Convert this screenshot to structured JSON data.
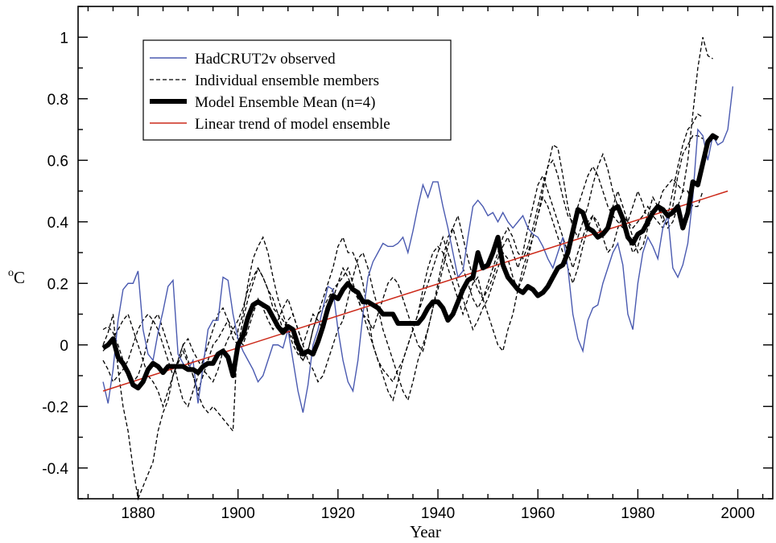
{
  "chart_data": {
    "type": "line",
    "title": "",
    "xlabel": "Year",
    "ylabel_main": "C",
    "ylabel_superscript": "o",
    "xlim": [
      1868,
      2007
    ],
    "ylim": [
      -0.5,
      1.1
    ],
    "xticks": [
      1880,
      1900,
      1920,
      1940,
      1960,
      1980,
      2000
    ],
    "yticks": [
      -0.4,
      -0.2,
      0,
      0.2,
      0.4,
      0.6,
      0.8,
      1
    ],
    "ytick_labels": [
      "-0.4",
      "-0.2",
      "0",
      "0.2",
      "0.4",
      "0.6",
      "0.8",
      "1"
    ],
    "grid": false,
    "legend_position": "top-left",
    "colors": {
      "observed": "#4a5ab0",
      "members": "#000000",
      "mean": "#000000",
      "trend": "#cc2a1a"
    },
    "series": [
      {
        "name": "HadCRUT2v observed",
        "style": "thin-blue",
        "x_start": 1873,
        "values": [
          -0.12,
          -0.19,
          -0.08,
          0.08,
          0.18,
          0.2,
          0.2,
          0.24,
          0.05,
          -0.03,
          -0.05,
          0.04,
          0.11,
          0.19,
          0.21,
          -0.03,
          -0.06,
          -0.08,
          -0.05,
          -0.19,
          -0.07,
          0.05,
          0.08,
          0.08,
          0.22,
          0.21,
          0.1,
          0.02,
          -0.02,
          -0.05,
          -0.08,
          -0.12,
          -0.1,
          -0.05,
          0.0,
          0.0,
          -0.01,
          0.05,
          -0.05,
          -0.15,
          -0.22,
          -0.13,
          0.0,
          0.05,
          0.12,
          0.19,
          0.18,
          0.05,
          -0.05,
          -0.12,
          -0.15,
          -0.05,
          0.1,
          0.22,
          0.27,
          0.3,
          0.33,
          0.32,
          0.32,
          0.33,
          0.35,
          0.3,
          0.37,
          0.45,
          0.52,
          0.48,
          0.53,
          0.53,
          0.45,
          0.38,
          0.3,
          0.22,
          0.24,
          0.35,
          0.45,
          0.47,
          0.45,
          0.42,
          0.43,
          0.4,
          0.43,
          0.4,
          0.38,
          0.4,
          0.42,
          0.38,
          0.36,
          0.35,
          0.32,
          0.28,
          0.25,
          0.3,
          0.35,
          0.25,
          0.1,
          0.02,
          -0.02,
          0.08,
          0.12,
          0.13,
          0.2,
          0.25,
          0.3,
          0.33,
          0.26,
          0.1,
          0.05,
          0.2,
          0.3,
          0.35,
          0.32,
          0.28,
          0.38,
          0.42,
          0.25,
          0.22,
          0.26,
          0.33,
          0.48,
          0.7,
          0.68,
          0.6,
          0.68,
          0.65,
          0.66,
          0.7,
          0.84
        ]
      },
      {
        "name": "Individual ensemble members",
        "style": "dashed",
        "members": [
          {
            "x_start": 1873,
            "values": [
              0.0,
              0.04,
              0.1,
              -0.08,
              -0.2,
              -0.28,
              -0.4,
              -0.5,
              -0.46,
              -0.42,
              -0.38,
              -0.28,
              -0.22,
              -0.18,
              -0.1,
              -0.06,
              -0.02,
              -0.06,
              -0.1,
              -0.16,
              -0.2,
              -0.22,
              -0.2,
              -0.22,
              -0.24,
              -0.26,
              -0.28,
              0.05,
              0.1,
              0.2,
              0.28,
              0.32,
              0.35,
              0.3,
              0.22,
              0.15,
              0.1,
              0.05,
              0.0,
              -0.03,
              -0.05,
              -0.02,
              0.05,
              0.1,
              0.15,
              0.2,
              0.25,
              0.32,
              0.35,
              0.3,
              0.3,
              0.26,
              0.2,
              0.1,
              0.0,
              -0.05,
              -0.1,
              -0.15,
              -0.18,
              -0.12,
              -0.05,
              0.0,
              0.05,
              0.1,
              0.18,
              0.25,
              0.3,
              0.32,
              0.3,
              0.25,
              0.2,
              0.15,
              0.1,
              0.15,
              0.2,
              0.22,
              0.15,
              0.1,
              0.05,
              0.0,
              -0.02,
              0.05,
              0.1,
              0.18,
              0.25,
              0.3,
              0.35,
              0.42,
              0.5,
              0.58,
              0.65,
              0.64,
              0.55,
              0.45,
              0.38,
              0.35,
              0.4,
              0.45,
              0.52,
              0.58,
              0.62,
              0.57,
              0.5,
              0.45,
              0.42,
              0.4,
              0.45,
              0.5,
              0.46,
              0.4,
              0.42,
              0.45,
              0.5,
              0.52,
              0.54,
              0.52,
              0.5,
              0.6,
              0.75,
              0.9,
              1.0,
              0.94,
              0.93
            ]
          },
          {
            "x_start": 1873,
            "values": [
              0.05,
              0.06,
              0.04,
              0.0,
              -0.05,
              -0.1,
              -0.12,
              -0.1,
              -0.05,
              0.02,
              0.08,
              0.1,
              0.05,
              0.0,
              -0.05,
              -0.12,
              -0.18,
              -0.2,
              -0.15,
              -0.1,
              -0.05,
              0.0,
              0.05,
              0.1,
              0.12,
              0.08,
              0.02,
              0.0,
              0.08,
              0.15,
              0.2,
              0.25,
              0.22,
              0.18,
              0.15,
              0.1,
              0.05,
              0.08,
              0.1,
              0.05,
              0.0,
              -0.05,
              -0.08,
              -0.12,
              -0.1,
              -0.05,
              0.0,
              0.05,
              0.08,
              0.15,
              0.22,
              0.28,
              0.3,
              0.25,
              0.18,
              0.12,
              0.05,
              0.0,
              -0.05,
              -0.1,
              -0.15,
              -0.18,
              -0.12,
              -0.05,
              0.0,
              0.05,
              0.12,
              0.2,
              0.28,
              0.35,
              0.38,
              0.32,
              0.25,
              0.2,
              0.15,
              0.12,
              0.15,
              0.2,
              0.25,
              0.3,
              0.35,
              0.38,
              0.35,
              0.3,
              0.28,
              0.32,
              0.38,
              0.45,
              0.52,
              0.58,
              0.6,
              0.55,
              0.48,
              0.42,
              0.4,
              0.45,
              0.5,
              0.55,
              0.58,
              0.55,
              0.5,
              0.45,
              0.42,
              0.4,
              0.38,
              0.35,
              0.3,
              0.32,
              0.38,
              0.42,
              0.48,
              0.45,
              0.4,
              0.42,
              0.5,
              0.58,
              0.65,
              0.7,
              0.72,
              0.75,
              0.74
            ]
          },
          {
            "x_start": 1873,
            "values": [
              -0.05,
              -0.08,
              -0.12,
              -0.1,
              -0.08,
              -0.05,
              0.0,
              0.05,
              0.08,
              0.1,
              0.08,
              0.05,
              0.0,
              -0.05,
              -0.1,
              -0.05,
              0.0,
              0.02,
              -0.02,
              -0.05,
              -0.08,
              -0.1,
              -0.12,
              -0.08,
              -0.02,
              0.02,
              0.05,
              0.08,
              0.12,
              0.18,
              0.22,
              0.25,
              0.22,
              0.18,
              0.12,
              0.1,
              0.08,
              0.05,
              0.02,
              -0.02,
              -0.05,
              -0.02,
              0.05,
              0.1,
              0.12,
              0.15,
              0.18,
              0.2,
              0.22,
              0.25,
              0.2,
              0.15,
              0.1,
              0.08,
              0.05,
              0.1,
              0.15,
              0.2,
              0.22,
              0.2,
              0.15,
              0.1,
              0.05,
              0.0,
              -0.02,
              0.05,
              0.12,
              0.18,
              0.25,
              0.32,
              0.38,
              0.42,
              0.35,
              0.28,
              0.22,
              0.18,
              0.15,
              0.18,
              0.22,
              0.28,
              0.32,
              0.35,
              0.3,
              0.25,
              0.3,
              0.38,
              0.45,
              0.52,
              0.55,
              0.5,
              0.45,
              0.4,
              0.35,
              0.3,
              0.25,
              0.3,
              0.35,
              0.4,
              0.42,
              0.38,
              0.35,
              0.4,
              0.45,
              0.5,
              0.45,
              0.4,
              0.38,
              0.4,
              0.42,
              0.45,
              0.42,
              0.4,
              0.38,
              0.4,
              0.45,
              0.55,
              0.62,
              0.65,
              0.68,
              0.68,
              0.67
            ]
          },
          {
            "x_start": 1873,
            "values": [
              -0.02,
              0.0,
              0.02,
              0.05,
              0.08,
              0.1,
              0.05,
              0.0,
              -0.05,
              -0.1,
              -0.12,
              -0.15,
              -0.2,
              -0.15,
              -0.1,
              -0.05,
              0.0,
              -0.05,
              -0.1,
              -0.15,
              -0.1,
              -0.05,
              0.0,
              0.02,
              0.05,
              0.08,
              0.05,
              0.02,
              0.0,
              0.05,
              0.1,
              0.15,
              0.12,
              0.08,
              0.05,
              0.08,
              0.12,
              0.15,
              0.1,
              0.05,
              0.0,
              0.05,
              0.1,
              0.08,
              0.05,
              0.1,
              0.15,
              0.2,
              0.25,
              0.22,
              0.18,
              0.15,
              0.1,
              0.05,
              0.0,
              -0.05,
              -0.08,
              -0.1,
              -0.12,
              -0.08,
              -0.05,
              0.0,
              0.05,
              0.1,
              0.15,
              0.2,
              0.25,
              0.3,
              0.35,
              0.3,
              0.25,
              0.2,
              0.15,
              0.1,
              0.05,
              0.08,
              0.12,
              0.15,
              0.2,
              0.25,
              0.3,
              0.28,
              0.22,
              0.18,
              0.22,
              0.28,
              0.35,
              0.42,
              0.48,
              0.45,
              0.4,
              0.35,
              0.3,
              0.25,
              0.2,
              0.25,
              0.32,
              0.38,
              0.42,
              0.4,
              0.35,
              0.3,
              0.32,
              0.38,
              0.42,
              0.4,
              0.35,
              0.3,
              0.32,
              0.38,
              0.42,
              0.45,
              0.42,
              0.38,
              0.4,
              0.45,
              0.5,
              0.5,
              0.45,
              0.45,
              0.5
            ]
          }
        ]
      },
      {
        "name": "Model Ensemble Mean (n=4)",
        "style": "thick-black",
        "x_start": 1873,
        "values": [
          -0.01,
          0.0,
          0.02,
          -0.04,
          -0.06,
          -0.09,
          -0.13,
          -0.14,
          -0.12,
          -0.08,
          -0.06,
          -0.07,
          -0.09,
          -0.07,
          -0.07,
          -0.07,
          -0.07,
          -0.08,
          -0.08,
          -0.09,
          -0.07,
          -0.06,
          -0.06,
          -0.03,
          -0.02,
          -0.04,
          -0.1,
          0.0,
          0.03,
          0.09,
          0.13,
          0.14,
          0.13,
          0.12,
          0.09,
          0.06,
          0.04,
          0.06,
          0.05,
          0.0,
          -0.03,
          -0.02,
          -0.03,
          0.01,
          0.06,
          0.12,
          0.16,
          0.15,
          0.18,
          0.2,
          0.18,
          0.17,
          0.14,
          0.14,
          0.13,
          0.12,
          0.1,
          0.1,
          0.1,
          0.07,
          0.07,
          0.07,
          0.07,
          0.07,
          0.09,
          0.12,
          0.14,
          0.14,
          0.12,
          0.08,
          0.1,
          0.14,
          0.18,
          0.21,
          0.22,
          0.3,
          0.25,
          0.26,
          0.3,
          0.35,
          0.26,
          0.22,
          0.2,
          0.18,
          0.17,
          0.19,
          0.18,
          0.16,
          0.17,
          0.19,
          0.22,
          0.25,
          0.26,
          0.3,
          0.37,
          0.44,
          0.43,
          0.38,
          0.37,
          0.35,
          0.36,
          0.38,
          0.44,
          0.45,
          0.41,
          0.35,
          0.33,
          0.36,
          0.37,
          0.4,
          0.43,
          0.45,
          0.44,
          0.42,
          0.43,
          0.45,
          0.38,
          0.43,
          0.53,
          0.52,
          0.59,
          0.66,
          0.68,
          0.67
        ]
      },
      {
        "name": "Linear trend of model ensemble",
        "style": "thin-red",
        "x": [
          1873,
          1998
        ],
        "values": [
          -0.15,
          0.5
        ]
      }
    ]
  }
}
